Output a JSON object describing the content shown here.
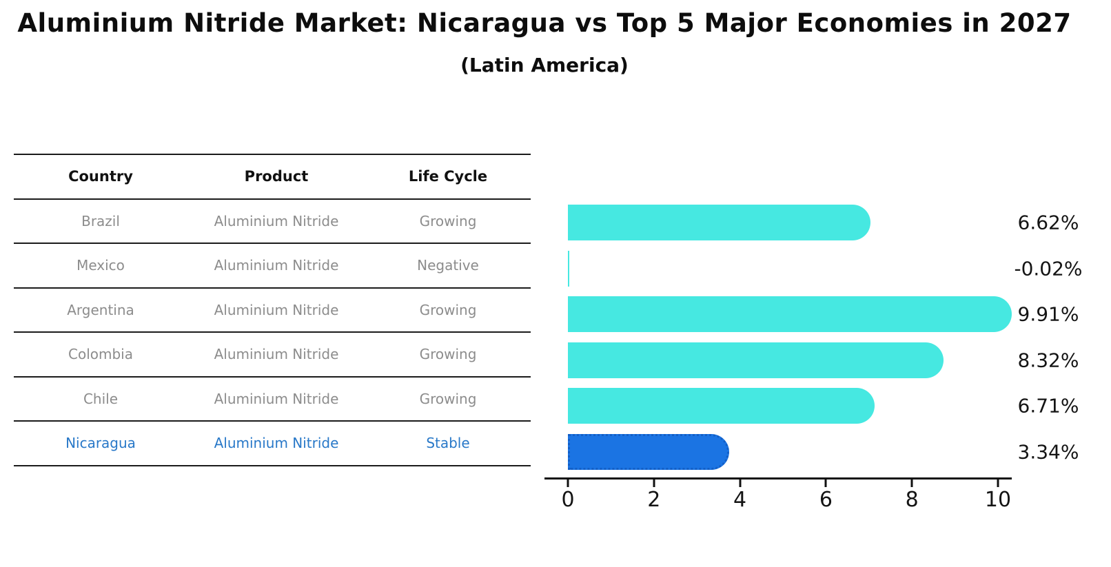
{
  "title": "Aluminium Nitride Market: Nicaragua vs Top 5 Major Economies in 2027",
  "subtitle": "(Latin America)",
  "table": {
    "columns": [
      "Country",
      "Product",
      "Life Cycle"
    ],
    "rows": [
      {
        "country": "Brazil",
        "product": "Aluminium Nitride",
        "life_cycle": "Growing"
      },
      {
        "country": "Mexico",
        "product": "Aluminium Nitride",
        "life_cycle": "Negative"
      },
      {
        "country": "Argentina",
        "product": "Aluminium Nitride",
        "life_cycle": "Growing"
      },
      {
        "country": "Colombia",
        "product": "Aluminium Nitride",
        "life_cycle": "Growing"
      },
      {
        "country": "Chile",
        "product": "Aluminium Nitride",
        "life_cycle": "Growing"
      },
      {
        "country": "Nicaragua",
        "product": "Aluminium Nitride",
        "life_cycle": "Stable"
      }
    ],
    "highlight_row_index": 5
  },
  "chart_data": {
    "type": "bar",
    "orientation": "horizontal",
    "title": "Aluminium Nitride Market: Nicaragua vs Top 5 Major Economies in 2027 (Latin America)",
    "categories": [
      "Brazil",
      "Mexico",
      "Argentina",
      "Colombia",
      "Chile",
      "Nicaragua"
    ],
    "values": [
      6.62,
      -0.02,
      9.91,
      8.32,
      6.71,
      3.34
    ],
    "value_labels": [
      "6.62%",
      "-0.02%",
      "9.91%",
      "8.32%",
      "6.71%",
      "3.34%"
    ],
    "highlight_index": 5,
    "x_ticks": [
      0,
      2,
      4,
      6,
      8,
      10
    ],
    "x_tick_labels": [
      "0",
      "2",
      "4",
      "6",
      "8",
      "10"
    ],
    "xlim": [
      -0.55,
      10.4
    ],
    "grid": false,
    "legend": false,
    "xlabel": "",
    "ylabel": ""
  },
  "colors": {
    "bar": "#46e8e1",
    "highlight_bar": "#1b74e3",
    "highlight_bar_border": "#135fc6",
    "highlight_text": "#2878c8",
    "table_text": "#8c8c8c",
    "heading_text": "#111111",
    "axis": "#111111"
  }
}
